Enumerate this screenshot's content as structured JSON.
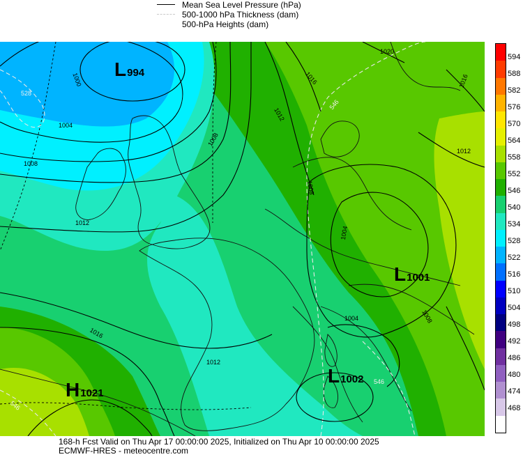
{
  "legend": {
    "items": [
      {
        "label": "Mean Sea Level Pressure (hPa)",
        "style": "solid"
      },
      {
        "label": "500-1000 hPa Thickness (dam)",
        "style": "dash"
      },
      {
        "label": "500-hPa Heights (dam)",
        "style": "none"
      }
    ]
  },
  "scale": {
    "labels": [
      "594",
      "588",
      "582",
      "576",
      "570",
      "564",
      "558",
      "552",
      "546",
      "540",
      "534",
      "528",
      "522",
      "516",
      "510",
      "504",
      "498",
      "492",
      "486",
      "480",
      "474",
      "468"
    ],
    "colors": [
      "#ff0000",
      "#ff3c00",
      "#ff7800",
      "#ffb400",
      "#ffe600",
      "#e6f000",
      "#a8e000",
      "#58c800",
      "#20b000",
      "#18d070",
      "#20e8c0",
      "#00f0ff",
      "#00b4ff",
      "#0070ff",
      "#0000ff",
      "#0000c0",
      "#000080",
      "#400080",
      "#7030a0",
      "#9060c0",
      "#b090d0",
      "#d8c8e8",
      "#ffffff"
    ]
  },
  "systems": {
    "low_north": {
      "letter": "L",
      "value": "994"
    },
    "low_east": {
      "letter": "L",
      "value": "1001"
    },
    "low_south": {
      "letter": "L",
      "value": "1002"
    },
    "high_sw": {
      "letter": "H",
      "value": "1021"
    }
  },
  "isobars": {
    "l1000": "1000",
    "l1004_a": "1004",
    "l1004_b": "1004",
    "l1004_c": "1004",
    "l1008_a": "1008",
    "l1008_b": "1008",
    "l1008_c": "1008",
    "l1008_d": "1008",
    "l1012_a": "1012",
    "l1012_b": "1012",
    "l1012_c": "1012",
    "l1012_d": "1012",
    "l1016_a": "1016",
    "l1016_b": "1016",
    "l1016_c": "1016",
    "l1020": "1020"
  },
  "thickness_labels": {
    "t528": "528",
    "t546_a": "546",
    "t546_b": "546",
    "t546_c": "546"
  },
  "footer": {
    "line1": "168-h Fcst Valid on Thu Apr 17 00:00:00 2025, Initialized on Thu Apr 10 00:00:00 2025",
    "line2": "ECMWF-HRES  - meteocentre.com"
  }
}
